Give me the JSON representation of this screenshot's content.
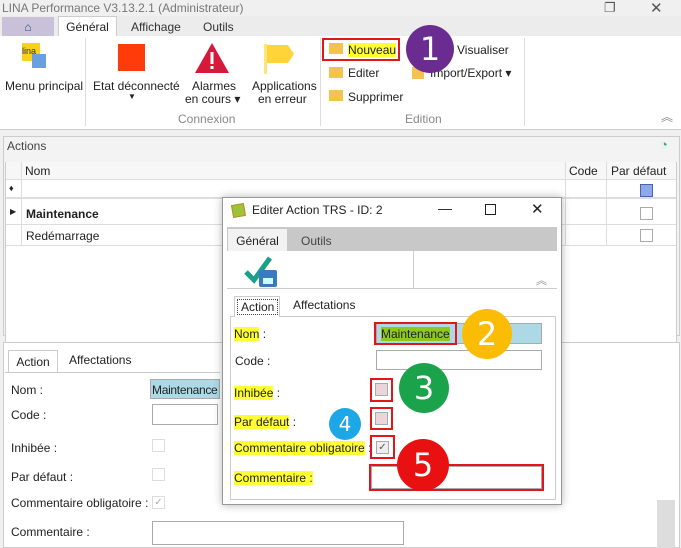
{
  "window": {
    "title": "LINA Performance  V3.13.2.1  (Administrateur)"
  },
  "ribbon": {
    "tabs": [
      {
        "label": "Général"
      },
      {
        "label": "Affichage"
      },
      {
        "label": "Outils"
      }
    ],
    "menu_principal": "Menu principal",
    "logo_text": "lina",
    "etat": "Etat déconnecté",
    "alarmes": [
      "Alarmes",
      "en cours ▾"
    ],
    "applications": [
      "Applications",
      "en erreur"
    ],
    "connexion_group": "Connexion",
    "nouveau": "Nouveau",
    "editer": "Editer",
    "supprimer": "Supprimer",
    "visualiser": "Visualiser",
    "import_export": "Import/Export ▾",
    "edition_group": "Edition"
  },
  "actions": {
    "title": "Actions",
    "columns": [
      "Nom",
      "Code",
      "Par défaut"
    ],
    "rows": [
      {
        "nom": "Maintenance",
        "selected": true
      },
      {
        "nom": "Redémarrage"
      }
    ]
  },
  "detail": {
    "tabs": [
      "Action",
      "Affectations"
    ],
    "labels": {
      "nom": "Nom :",
      "code": "Code :",
      "inhibee": "Inhibée :",
      "par_defaut": "Par défaut :",
      "comment_obl": "Commentaire obligatoire :",
      "commentaire": "Commentaire :"
    },
    "nom_value": "Maintenance",
    "commentaire_obligatoire": true
  },
  "dialog": {
    "title": "Editer Action TRS - ID: 2",
    "tabs": [
      "Général",
      "Outils"
    ],
    "inner_tabs": [
      "Action",
      "Affectations"
    ],
    "labels": {
      "nom": "Nom",
      "code": "Code :",
      "inhibee": "Inhibée",
      "par_defaut": "Par défaut",
      "comment_obl": "Commentaire obligatoire",
      "commentaire": "Commentaire :"
    },
    "colon": ":",
    "nom_value": "Maintenance",
    "inhibee": false,
    "par_defaut": false,
    "commentaire_obligatoire": true
  },
  "annotations": [
    {
      "label": "1",
      "color": "#6a2c91"
    },
    {
      "label": "2",
      "color": "#fbbc05"
    },
    {
      "label": "3",
      "color": "#1aa34a"
    },
    {
      "label": "4",
      "color": "#1ea7e6"
    },
    {
      "label": "5",
      "color": "#e81010"
    }
  ]
}
